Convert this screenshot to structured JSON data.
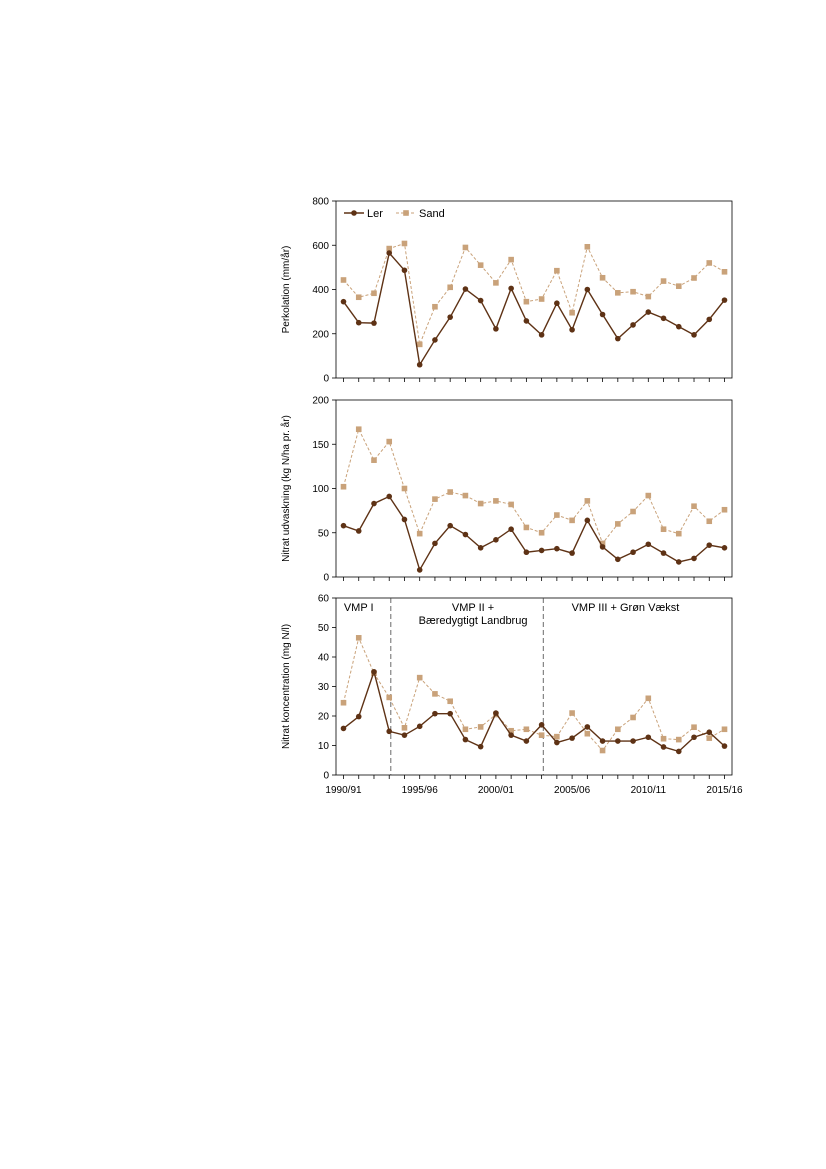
{
  "chart_data": [
    {
      "type": "line",
      "id": "perkolation",
      "ylabel": "Perkolation (mm/år)",
      "ylim": [
        0,
        800
      ],
      "yticks": [
        0,
        200,
        400,
        600,
        800
      ],
      "legend": {
        "placement": "top-left"
      },
      "series": [
        {
          "name": "Ler",
          "color": "#5e3215",
          "marker": "circle",
          "line": "solid",
          "values": [
            345,
            250,
            248,
            565,
            487,
            60,
            172,
            275,
            402,
            350,
            222,
            405,
            258,
            195,
            338,
            218,
            400,
            287,
            178,
            240,
            298,
            270,
            232,
            195,
            265,
            352
          ]
        },
        {
          "name": "Sand",
          "color": "#c9a27a",
          "marker": "square",
          "line": "dashed",
          "values": [
            443,
            365,
            383,
            585,
            608,
            152,
            322,
            410,
            590,
            510,
            430,
            535,
            345,
            357,
            485,
            295,
            593,
            453,
            385,
            390,
            368,
            438,
            415,
            452,
            520,
            480
          ]
        }
      ]
    },
    {
      "type": "line",
      "id": "udvaskning",
      "ylabel": "Nitrat udvaskning (kg N/ha pr. år)",
      "ylim": [
        0,
        200
      ],
      "yticks": [
        0,
        50,
        100,
        150,
        200
      ],
      "series": [
        {
          "name": "Ler",
          "color": "#5e3215",
          "marker": "circle",
          "line": "solid",
          "values": [
            58,
            52,
            83,
            91,
            65,
            8,
            38,
            58,
            48,
            33,
            42,
            54,
            28,
            30,
            32,
            27,
            64,
            34,
            20,
            28,
            37,
            27,
            17,
            21,
            36,
            33
          ]
        },
        {
          "name": "Sand",
          "color": "#c9a27a",
          "marker": "square",
          "line": "dashed",
          "values": [
            102,
            167,
            132,
            153,
            100,
            49,
            88,
            96,
            92,
            83,
            86,
            82,
            56,
            50,
            70,
            64,
            86,
            38,
            60,
            74,
            92,
            54,
            49,
            80,
            63,
            76
          ]
        }
      ]
    },
    {
      "type": "line",
      "id": "koncentration",
      "ylabel": "Nitrat koncentration (mg N/l)",
      "ylim": [
        0,
        60
      ],
      "yticks": [
        0,
        10,
        20,
        30,
        40,
        50,
        60
      ],
      "xticklabels": [
        "1990/91",
        "1995/96",
        "2000/01",
        "2005/06",
        "2010/11",
        "2015/16"
      ],
      "xtick_indices": [
        0,
        5,
        10,
        15,
        20,
        25
      ],
      "annotations": [
        {
          "lines": [
            "VMP I"
          ],
          "center_index": 1
        },
        {
          "lines": [
            "VMP II +",
            "Bæredygtigt Landbrug"
          ],
          "center_index": 8.5
        },
        {
          "lines": [
            "VMP III + Grøn Vækst"
          ],
          "center_index": 18.5
        }
      ],
      "dividers_at_index": [
        3,
        13
      ],
      "series": [
        {
          "name": "Ler",
          "color": "#5e3215",
          "marker": "circle",
          "line": "solid",
          "values": [
            15.8,
            19.8,
            35,
            14.8,
            13.5,
            16.5,
            20.8,
            20.8,
            12,
            9.6,
            21,
            13.5,
            11.5,
            17,
            11,
            12.5,
            16.3,
            11.5,
            11.5,
            11.5,
            12.8,
            9.5,
            8,
            12.8,
            14.5,
            9.8
          ]
        },
        {
          "name": "Sand",
          "color": "#c9a27a",
          "marker": "square",
          "line": "dashed",
          "values": [
            24.5,
            46.5,
            34.5,
            26.3,
            16,
            33,
            27.5,
            25,
            15.5,
            16.3,
            20.5,
            15,
            15.5,
            13.5,
            13,
            21,
            14,
            8.3,
            15.5,
            19.5,
            26,
            12.3,
            12,
            16.2,
            12.5,
            15.5
          ]
        }
      ]
    }
  ]
}
